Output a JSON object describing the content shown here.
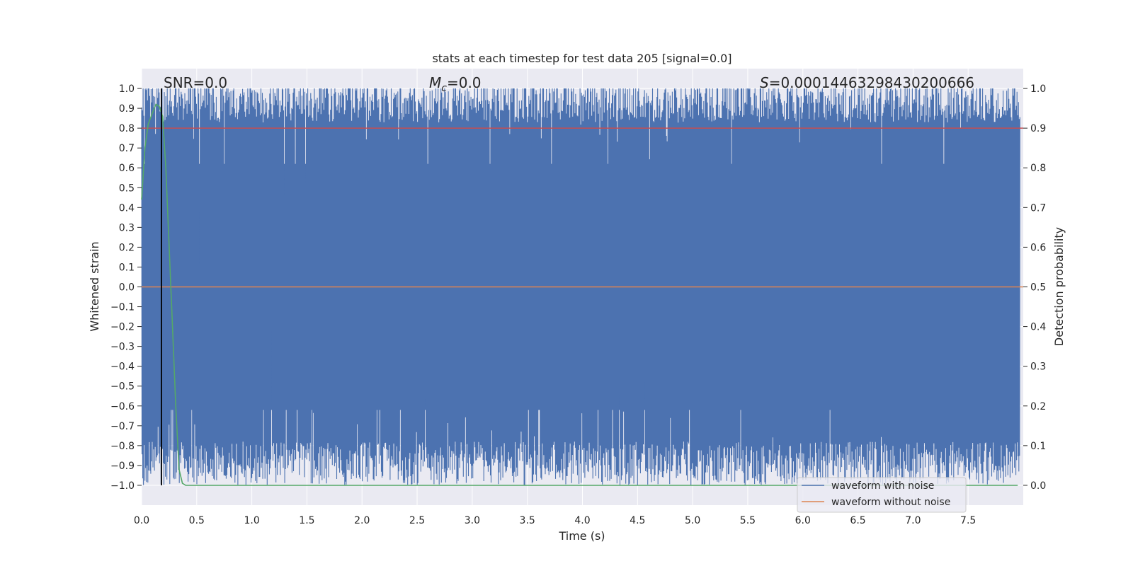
{
  "chart_data": {
    "type": "line",
    "title": "stats at each timestep for test data 205 [signal=0.0]",
    "xlabel": "Time (s)",
    "ylabel": "Whitened strain",
    "ylabel_right": "Detection probability",
    "xlim": [
      0.0,
      8.0
    ],
    "ylim": [
      -1.1,
      1.1
    ],
    "ylim_right": [
      -0.05,
      1.05
    ],
    "x_ticks": [
      "0.0",
      "0.5",
      "1.0",
      "1.5",
      "2.0",
      "2.5",
      "3.0",
      "3.5",
      "4.0",
      "4.5",
      "5.0",
      "5.5",
      "6.0",
      "6.5",
      "7.0",
      "7.5"
    ],
    "x_tick_values": [
      0.0,
      0.5,
      1.0,
      1.5,
      2.0,
      2.5,
      3.0,
      3.5,
      4.0,
      4.5,
      5.0,
      5.5,
      6.0,
      6.5,
      7.0,
      7.5
    ],
    "y_ticks": [
      "1.0",
      "0.9",
      "0.8",
      "0.7",
      "0.6",
      "0.5",
      "0.4",
      "0.3",
      "0.2",
      "0.1",
      "0.0",
      "−0.1",
      "−0.2",
      "−0.3",
      "−0.4",
      "−0.5",
      "−0.6",
      "−0.7",
      "−0.8",
      "−0.9",
      "−1.0"
    ],
    "y_tick_values": [
      1.0,
      0.9,
      0.8,
      0.7,
      0.6,
      0.5,
      0.4,
      0.3,
      0.2,
      0.1,
      0.0,
      -0.1,
      -0.2,
      -0.3,
      -0.4,
      -0.5,
      -0.6,
      -0.7,
      -0.8,
      -0.9,
      -1.0
    ],
    "y_right_ticks": [
      "1.0",
      "0.9",
      "0.8",
      "0.7",
      "0.6",
      "0.5",
      "0.4",
      "0.3",
      "0.2",
      "0.1",
      "0.0"
    ],
    "y_right_tick_values": [
      1.0,
      0.9,
      0.8,
      0.7,
      0.6,
      0.5,
      0.4,
      0.3,
      0.2,
      0.1,
      0.0
    ],
    "annotations": {
      "snr": "SNR=0.0",
      "mc_symbol": "M",
      "mc_subscript": "c",
      "mc_value": "=0.0",
      "s_symbol": "S",
      "s_value": "=0.00014463298430200666"
    },
    "legend": {
      "placement": "bottom-right",
      "entries": [
        {
          "label": "waveform with noise",
          "color": "#4c72b0"
        },
        {
          "label": "waveform without noise",
          "color": "#dd8452"
        }
      ]
    },
    "grid": true,
    "series": [
      {
        "name": "waveform with noise",
        "axis": "left",
        "color": "#4c72b0",
        "description_envelope": {
          "upper_typical": 0.95,
          "lower_typical": -0.9,
          "extremes": [
            -1.0,
            1.0
          ]
        }
      },
      {
        "name": "waveform without noise",
        "axis": "left",
        "color": "#dd8452",
        "x": [
          0.0,
          8.0
        ],
        "y": [
          0.0,
          0.0
        ]
      }
    ],
    "threshold": {
      "axis": "right",
      "value": 0.9,
      "color": "#c44e52"
    },
    "probability": {
      "axis": "right",
      "color": "#55a868",
      "x": [
        0.0,
        0.03,
        0.06,
        0.1,
        0.13,
        0.16,
        0.19,
        0.22,
        0.25,
        0.28,
        0.31,
        0.34,
        0.37,
        0.4,
        7.95
      ],
      "y": [
        0.72,
        0.85,
        0.91,
        0.94,
        0.96,
        0.955,
        0.93,
        0.8,
        0.6,
        0.4,
        0.2,
        0.04,
        0.005,
        0.0,
        0.0
      ]
    },
    "marker_line": {
      "axis": "left",
      "x": 0.18,
      "y": [
        -1.0,
        1.0
      ],
      "color": "#000000"
    },
    "colors": {
      "plot_bg": "#eaeaf2",
      "grid": "#ffffff",
      "text": "#262626"
    }
  }
}
